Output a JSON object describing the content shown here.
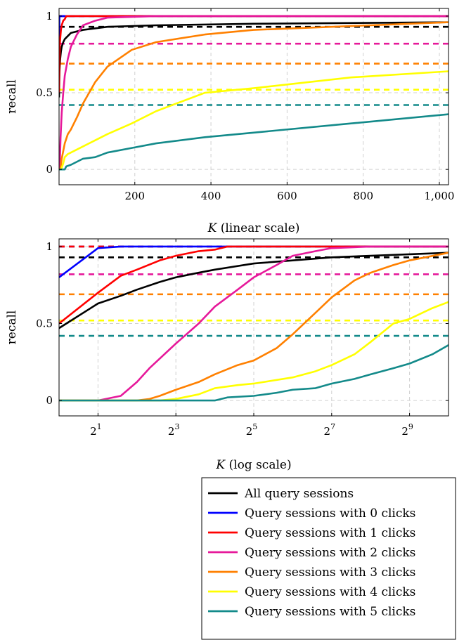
{
  "chart_data": [
    {
      "type": "line",
      "xlabel": "K (linear scale)",
      "xlabel_var": "K",
      "xlabel_rest": " (linear scale)",
      "ylabel": "recall",
      "xscale": "linear",
      "xlim": [
        1,
        1024
      ],
      "ylim": [
        -0.1,
        1.05
      ],
      "xticks": [
        200,
        400,
        600,
        800,
        1000
      ],
      "xtick_labels": [
        "200",
        "400",
        "600",
        "800",
        "1,000"
      ],
      "yticks": [
        0,
        0.5,
        1
      ],
      "ytick_labels": [
        "0",
        "0.5",
        "1"
      ],
      "grid": true
    },
    {
      "type": "line",
      "xlabel": "K (log scale)",
      "xlabel_var": "K",
      "xlabel_rest": " (log scale)",
      "ylabel": "recall",
      "xscale": "log2",
      "xlim": [
        1,
        1024
      ],
      "ylim": [
        -0.1,
        1.05
      ],
      "xticks": [
        2,
        8,
        32,
        128,
        512
      ],
      "xtick_labels": [
        {
          "base": "2",
          "exp": "1"
        },
        {
          "base": "2",
          "exp": "3"
        },
        {
          "base": "2",
          "exp": "5"
        },
        {
          "base": "2",
          "exp": "7"
        },
        {
          "base": "2",
          "exp": "9"
        }
      ],
      "yticks": [
        0,
        0.5,
        1
      ],
      "ytick_labels": [
        "0",
        "0.5",
        "1"
      ],
      "grid": true
    }
  ],
  "series": [
    {
      "name": "All query sessions",
      "color": "#000000",
      "dashed_level": 0.93,
      "points": [
        [
          1,
          0.47
        ],
        [
          2,
          0.63
        ],
        [
          3,
          0.68
        ],
        [
          4,
          0.72
        ],
        [
          6,
          0.77
        ],
        [
          8,
          0.8
        ],
        [
          12,
          0.83
        ],
        [
          16,
          0.85
        ],
        [
          32,
          0.89
        ],
        [
          64,
          0.91
        ],
        [
          128,
          0.93
        ],
        [
          256,
          0.94
        ],
        [
          512,
          0.95
        ],
        [
          1024,
          0.96
        ]
      ]
    },
    {
      "name": "Query sessions with 0 clicks",
      "color": "#0000ff",
      "dashed_level": 1.0,
      "points": [
        [
          1,
          0.8
        ],
        [
          2,
          0.99
        ],
        [
          3,
          1.0
        ],
        [
          1024,
          1.0
        ]
      ]
    },
    {
      "name": "Query sessions with 1 clicks",
      "color": "#ff0000",
      "dashed_level": 1.0,
      "points": [
        [
          1,
          0.5
        ],
        [
          2,
          0.7
        ],
        [
          3,
          0.81
        ],
        [
          4,
          0.85
        ],
        [
          6,
          0.91
        ],
        [
          8,
          0.94
        ],
        [
          12,
          0.97
        ],
        [
          16,
          0.98
        ],
        [
          20,
          1.0
        ],
        [
          1024,
          1.0
        ]
      ]
    },
    {
      "name": "Query sessions with 2 clicks",
      "color": "#e6199a",
      "dashed_level": 0.82,
      "points": [
        [
          1,
          0.0
        ],
        [
          2,
          0.0
        ],
        [
          3,
          0.03
        ],
        [
          4,
          0.12
        ],
        [
          5,
          0.21
        ],
        [
          8,
          0.37
        ],
        [
          12,
          0.5
        ],
        [
          16,
          0.61
        ],
        [
          24,
          0.72
        ],
        [
          32,
          0.8
        ],
        [
          48,
          0.88
        ],
        [
          64,
          0.94
        ],
        [
          96,
          0.97
        ],
        [
          128,
          0.99
        ],
        [
          256,
          1.0
        ],
        [
          1024,
          1.0
        ]
      ]
    },
    {
      "name": "Query sessions with 3 clicks",
      "color": "#ff8000",
      "dashed_level": 0.69,
      "points": [
        [
          1,
          0.0
        ],
        [
          4,
          0.0
        ],
        [
          5,
          0.01
        ],
        [
          6,
          0.03
        ],
        [
          8,
          0.07
        ],
        [
          12,
          0.12
        ],
        [
          16,
          0.17
        ],
        [
          24,
          0.23
        ],
        [
          32,
          0.26
        ],
        [
          48,
          0.34
        ],
        [
          64,
          0.43
        ],
        [
          96,
          0.57
        ],
        [
          128,
          0.67
        ],
        [
          192,
          0.78
        ],
        [
          256,
          0.83
        ],
        [
          384,
          0.88
        ],
        [
          512,
          0.91
        ],
        [
          1024,
          0.96
        ]
      ]
    },
    {
      "name": "Query sessions with 4 clicks",
      "color": "#ffff00",
      "dashed_level": 0.52,
      "points": [
        [
          1,
          0.0
        ],
        [
          6,
          0.0
        ],
        [
          8,
          0.01
        ],
        [
          12,
          0.04
        ],
        [
          16,
          0.08
        ],
        [
          24,
          0.1
        ],
        [
          32,
          0.11
        ],
        [
          64,
          0.15
        ],
        [
          96,
          0.19
        ],
        [
          128,
          0.23
        ],
        [
          192,
          0.3
        ],
        [
          256,
          0.38
        ],
        [
          384,
          0.5
        ],
        [
          512,
          0.53
        ],
        [
          768,
          0.6
        ],
        [
          1024,
          0.64
        ]
      ]
    },
    {
      "name": "Query sessions with 5 clicks",
      "color": "#138a8a",
      "dashed_level": 0.42,
      "points": [
        [
          1,
          0.0
        ],
        [
          16,
          0.0
        ],
        [
          20,
          0.02
        ],
        [
          32,
          0.03
        ],
        [
          48,
          0.05
        ],
        [
          64,
          0.07
        ],
        [
          96,
          0.08
        ],
        [
          128,
          0.11
        ],
        [
          192,
          0.14
        ],
        [
          256,
          0.17
        ],
        [
          384,
          0.21
        ],
        [
          512,
          0.24
        ],
        [
          768,
          0.3
        ],
        [
          1024,
          0.36
        ]
      ]
    }
  ]
}
